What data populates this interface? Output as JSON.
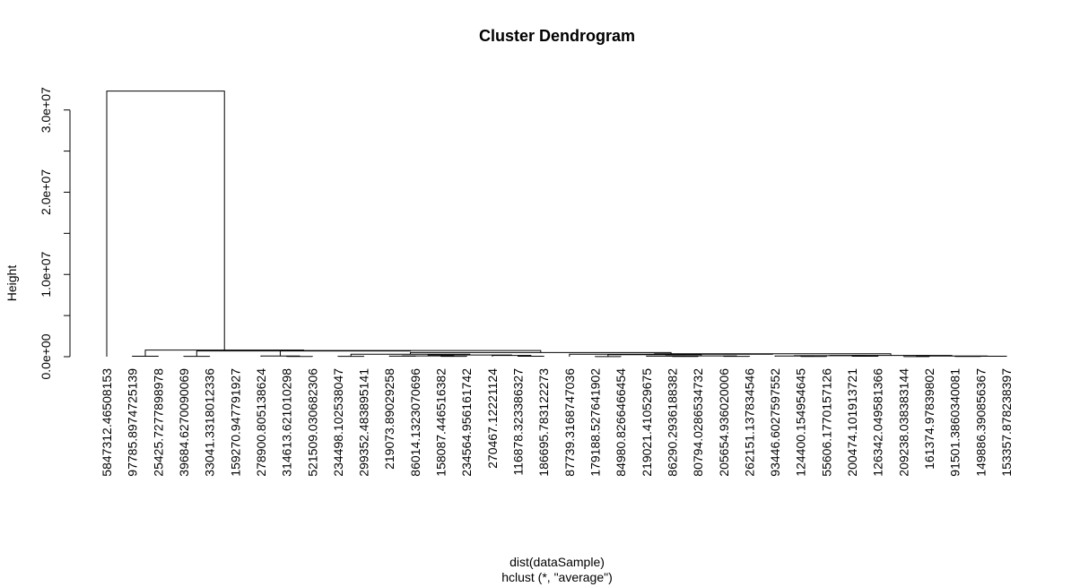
{
  "chart_data": {
    "type": "dendrogram",
    "title": "Cluster Dendrogram",
    "xlabel": "dist(dataSample)",
    "sublabel": "hclust (*, \"average\")",
    "ylabel": "Height",
    "ylim": [
      0,
      34000000
    ],
    "yticks": [
      0,
      5000000,
      10000000,
      15000000,
      20000000,
      25000000,
      30000000
    ],
    "ytick_labels": [
      "0.0e+00",
      "",
      "1.0e+07",
      "",
      "2.0e+07",
      "",
      "3.0e+07"
    ],
    "leaves": [
      "5847312.46508153",
      "97785.8974725139",
      "25425.7277898978",
      "39684.6270090069",
      "33041.3318012336",
      "159270.947791927",
      "278900.805138624",
      "314613.621010298",
      "521509.030682306",
      "234498.102538047",
      "299352.483895141",
      "219073.89029258",
      "86014.1323070696",
      "158087.446516382",
      "234564.956161742",
      "270467.12221124",
      "116878.323386327",
      "186695.783122273",
      "87739.3168747036",
      "179188.527641902",
      "84980.8266466454",
      "219021.410529675",
      "86290.2936188382",
      "80794.0286534732",
      "205654.936020006",
      "262151.137834546",
      "93446.6027597552",
      "124400.154954645",
      "55606.1770157126",
      "200474.101913721",
      "126342.049581366",
      "209238.038383144",
      "161374.97839802",
      "91501.3860340081",
      "149886.390856367",
      "153357.878238397"
    ],
    "merges": [
      [
        -2,
        -3,
        60000
      ],
      [
        -4,
        -5,
        40000
      ],
      [
        -8,
        -9,
        30000
      ],
      [
        -7,
        3,
        75000
      ],
      [
        -10,
        -11,
        35000
      ],
      [
        -12,
        -13,
        70000
      ],
      [
        -14,
        -15,
        45000
      ],
      [
        6,
        7,
        100000
      ],
      [
        -17,
        -18,
        55000
      ],
      [
        -16,
        9,
        150000
      ],
      [
        8,
        10,
        200000
      ],
      [
        5,
        11,
        300000
      ],
      [
        -20,
        -21,
        20000
      ],
      [
        -23,
        -24,
        30000
      ],
      [
        -22,
        14,
        70000
      ],
      [
        -25,
        -26,
        40000
      ],
      [
        15,
        16,
        100000
      ],
      [
        13,
        17,
        250000
      ],
      [
        -28,
        -29,
        30000
      ],
      [
        -27,
        19,
        80000
      ],
      [
        -30,
        -31,
        50000
      ],
      [
        20,
        21,
        120000
      ],
      [
        -32,
        -33,
        20000
      ],
      [
        -34,
        -35,
        30000
      ],
      [
        -36,
        24,
        50000
      ],
      [
        23,
        25,
        80000
      ],
      [
        22,
        26,
        150000
      ],
      [
        18,
        27,
        350000
      ],
      [
        -19,
        28,
        300000
      ],
      [
        12,
        29,
        500000
      ],
      [
        4,
        30,
        750000
      ],
      [
        2,
        31,
        700000
      ],
      [
        1,
        32,
        800000
      ],
      [
        -1,
        33,
        32300000
      ]
    ]
  }
}
